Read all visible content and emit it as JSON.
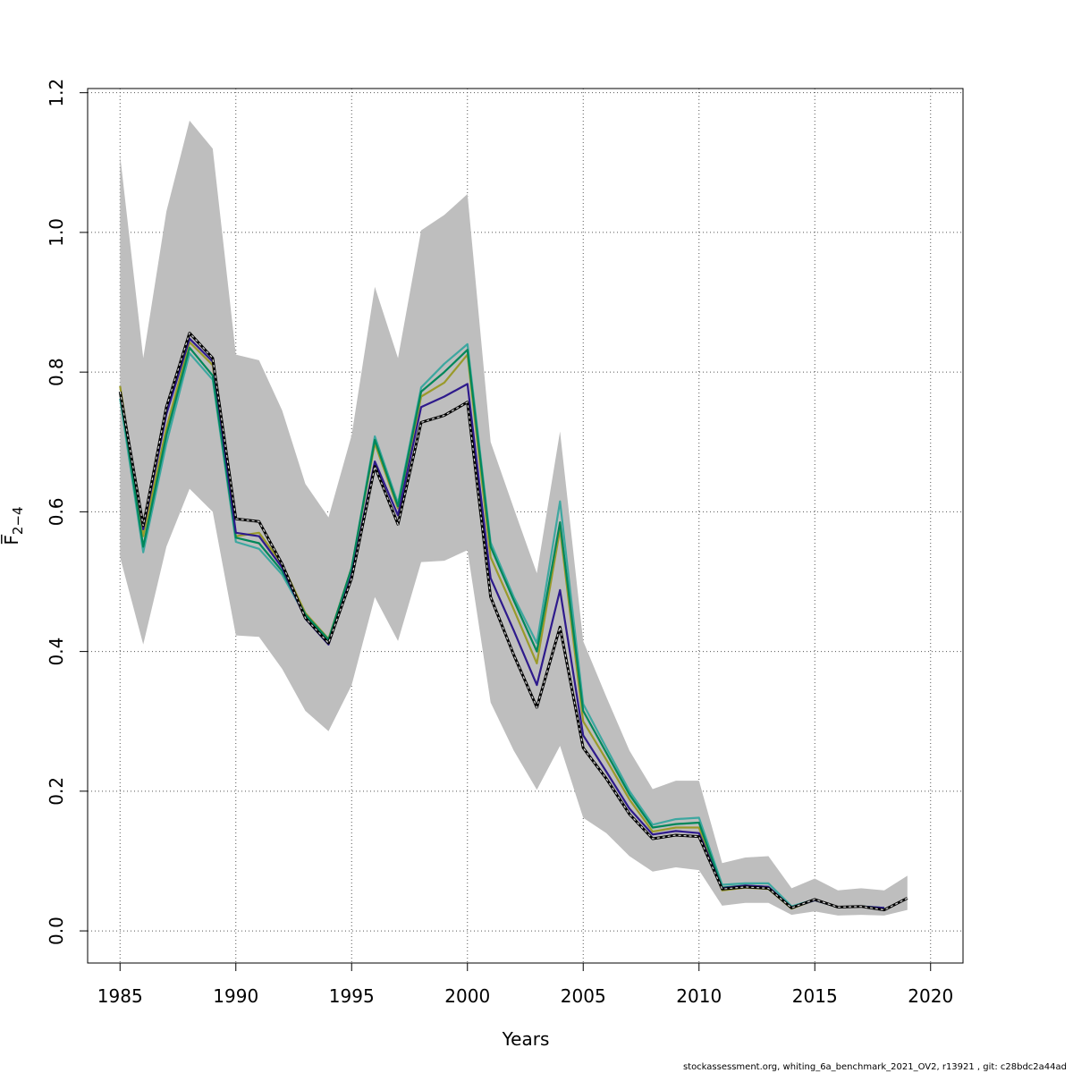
{
  "chart_data": {
    "type": "line",
    "xlabel": "Years",
    "ylabel": "F̅",
    "ylabel_subscript": "2−4",
    "xlim": [
      1983.6,
      2021.4
    ],
    "ylim": [
      -0.046,
      1.206
    ],
    "x_ticks": [
      1985,
      1990,
      1995,
      2000,
      2005,
      2010,
      2015,
      2020
    ],
    "y_ticks": [
      0.0,
      0.2,
      0.4,
      0.6,
      0.8,
      1.0,
      1.2
    ],
    "x_tick_labels": [
      "1985",
      "1990",
      "1995",
      "2000",
      "2005",
      "2010",
      "2015",
      "2020"
    ],
    "y_tick_labels": [
      "0.0",
      "0.2",
      "0.4",
      "0.6",
      "0.8",
      "1.0",
      "1.2"
    ],
    "grid": true,
    "band": {
      "color": "#bebebe",
      "x": [
        1985,
        1986,
        1987,
        1988,
        1989,
        1990,
        1991,
        1992,
        1993,
        1994,
        1995,
        1996,
        1997,
        1998,
        1999,
        2000,
        2001,
        2002,
        2003,
        2004,
        2005,
        2006,
        2007,
        2008,
        2009,
        2010,
        2011,
        2012,
        2013,
        2014,
        2015,
        2016,
        2017,
        2018,
        2019
      ],
      "upper": [
        1.11,
        0.82,
        1.03,
        1.16,
        1.12,
        0.825,
        0.817,
        0.745,
        0.64,
        0.592,
        0.71,
        0.922,
        0.82,
        1.003,
        1.025,
        1.055,
        0.7,
        0.605,
        0.512,
        0.715,
        0.415,
        0.335,
        0.258,
        0.203,
        0.215,
        0.215,
        0.097,
        0.105,
        0.107,
        0.061,
        0.075,
        0.058,
        0.061,
        0.058,
        0.079
      ],
      "lower": [
        0.535,
        0.41,
        0.55,
        0.633,
        0.6,
        0.423,
        0.421,
        0.375,
        0.315,
        0.286,
        0.352,
        0.478,
        0.415,
        0.528,
        0.53,
        0.545,
        0.327,
        0.258,
        0.202,
        0.265,
        0.162,
        0.14,
        0.107,
        0.085,
        0.091,
        0.087,
        0.036,
        0.04,
        0.04,
        0.023,
        0.028,
        0.022,
        0.023,
        0.022,
        0.03
      ]
    },
    "series": [
      {
        "color": "#3da7a0",
        "x": [
          1985,
          1986,
          1987,
          1988,
          1989,
          1990,
          1991,
          1992,
          1993,
          1994,
          1995,
          1996,
          1997,
          1998,
          1999,
          2000,
          2001,
          2002,
          2003,
          2004,
          2005,
          2006,
          2007,
          2008,
          2009,
          2010,
          2011,
          2012,
          2013,
          2014,
          2015,
          2016,
          2017,
          2018
        ],
        "values": [
          0.762,
          0.542,
          0.698,
          0.827,
          0.789,
          0.557,
          0.547,
          0.51,
          0.451,
          0.416,
          0.52,
          0.708,
          0.612,
          0.778,
          0.812,
          0.84,
          0.556,
          0.478,
          0.412,
          0.615,
          0.325,
          0.262,
          0.2,
          0.152,
          0.16,
          0.162,
          0.066,
          0.068,
          0.068,
          0.035,
          0.045,
          0.034,
          0.035,
          0.033
        ]
      },
      {
        "color": "#9a9a2a",
        "x": [
          1985,
          1986,
          1987,
          1988,
          1989,
          1990,
          1991,
          1992,
          1993,
          1994,
          1995,
          1996,
          1997,
          1998,
          1999,
          2000,
          2001,
          2002,
          2003,
          2004,
          2005,
          2006,
          2007,
          2008,
          2009,
          2010,
          2011,
          2012,
          2013,
          2014,
          2015,
          2016,
          2017,
          2018
        ],
        "values": [
          0.78,
          0.565,
          0.72,
          0.843,
          0.81,
          0.565,
          0.57,
          0.525,
          0.455,
          0.418,
          0.52,
          0.698,
          0.605,
          0.765,
          0.785,
          0.825,
          0.535,
          0.46,
          0.383,
          0.575,
          0.3,
          0.245,
          0.188,
          0.142,
          0.148,
          0.148,
          0.058,
          0.062,
          0.06,
          0.032,
          0.044,
          0.034,
          0.035,
          0.033
        ]
      },
      {
        "color": "#00875a",
        "x": [
          1985,
          1986,
          1987,
          1988,
          1989,
          1990,
          1991,
          1992,
          1993,
          1994,
          1995,
          1996,
          1997,
          1998,
          1999,
          2000,
          2001,
          2002,
          2003,
          2004,
          2005,
          2006,
          2007,
          2008,
          2009,
          2010,
          2011,
          2012,
          2013,
          2014,
          2015,
          2016,
          2017,
          2018
        ],
        "values": [
          0.77,
          0.55,
          0.71,
          0.835,
          0.795,
          0.563,
          0.555,
          0.515,
          0.453,
          0.417,
          0.52,
          0.703,
          0.608,
          0.772,
          0.8,
          0.832,
          0.55,
          0.473,
          0.4,
          0.585,
          0.315,
          0.255,
          0.195,
          0.148,
          0.153,
          0.155,
          0.062,
          0.065,
          0.063,
          0.033,
          0.044,
          0.034,
          0.035,
          0.033
        ]
      },
      {
        "color": "#2e1a8c",
        "x": [
          1985,
          1986,
          1987,
          1988,
          1989,
          1990,
          1991,
          1992,
          1993,
          1994,
          1995,
          1996,
          1997,
          1998,
          1999,
          2000,
          2001,
          2002,
          2003,
          2004,
          2005,
          2006,
          2007,
          2008,
          2009,
          2010,
          2011,
          2012,
          2013,
          2014,
          2015,
          2016,
          2017,
          2018
        ],
        "values": [
          0.772,
          0.575,
          0.74,
          0.848,
          0.815,
          0.57,
          0.565,
          0.52,
          0.447,
          0.41,
          0.51,
          0.672,
          0.595,
          0.75,
          0.765,
          0.783,
          0.505,
          0.43,
          0.352,
          0.488,
          0.28,
          0.228,
          0.175,
          0.138,
          0.143,
          0.14,
          0.061,
          0.065,
          0.063,
          0.033,
          0.044,
          0.034,
          0.035,
          0.033
        ]
      },
      {
        "color": "#000000",
        "dashed": true,
        "x": [
          1985,
          1986,
          1987,
          1988,
          1989,
          1990,
          1991,
          1992,
          1993,
          1994,
          1995,
          1996,
          1997,
          1998,
          1999,
          2000,
          2001,
          2002,
          2003,
          2004,
          2005,
          2006,
          2007,
          2008,
          2009,
          2010,
          2011,
          2012,
          2013,
          2014,
          2015,
          2016,
          2017,
          2018,
          2019
        ],
        "values": [
          0.772,
          0.58,
          0.75,
          0.856,
          0.82,
          0.59,
          0.586,
          0.525,
          0.448,
          0.412,
          0.505,
          0.665,
          0.582,
          0.728,
          0.738,
          0.757,
          0.478,
          0.395,
          0.32,
          0.435,
          0.262,
          0.218,
          0.167,
          0.132,
          0.137,
          0.135,
          0.06,
          0.063,
          0.061,
          0.033,
          0.045,
          0.034,
          0.035,
          0.03,
          0.047
        ]
      }
    ]
  },
  "footer": "stockassessment.org, whiting_6a_benchmark_2021_OV2, r13921 , git: c28bdc2a44ad"
}
